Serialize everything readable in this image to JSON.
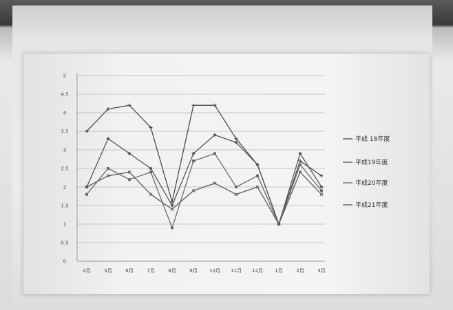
{
  "chart_data": {
    "type": "line",
    "categories": [
      "4月",
      "5月",
      "6月",
      "7月",
      "8月",
      "9月",
      "10月",
      "11月",
      "12月",
      "1月",
      "2月",
      "3月"
    ],
    "yticks": [
      "5",
      "4.5",
      "4",
      "3.5",
      "3",
      "2.5",
      "2",
      "1.5",
      "1",
      "0.5",
      "0"
    ],
    "ylim": [
      0,
      5
    ],
    "grid": true,
    "legend_position": "right",
    "series": [
      {
        "name": "平成 18年度",
        "values": [
          3.5,
          4.1,
          4.2,
          3.6,
          1.6,
          4.2,
          4.2,
          3.3,
          2.6,
          1.0,
          2.7,
          2.3
        ]
      },
      {
        "name": "平成19年度",
        "values": [
          2.0,
          3.3,
          2.9,
          2.5,
          1.5,
          2.9,
          3.4,
          3.2,
          2.6,
          1.0,
          2.9,
          2.0
        ]
      },
      {
        "name": "平成20年度",
        "values": [
          1.8,
          2.5,
          2.2,
          2.4,
          0.9,
          2.7,
          2.9,
          2.0,
          2.3,
          1.0,
          2.6,
          1.9
        ]
      },
      {
        "name": "平成21年度",
        "values": [
          2.0,
          2.3,
          2.4,
          1.8,
          1.4,
          1.9,
          2.1,
          1.8,
          2.0,
          1.0,
          2.4,
          1.8
        ]
      }
    ]
  }
}
